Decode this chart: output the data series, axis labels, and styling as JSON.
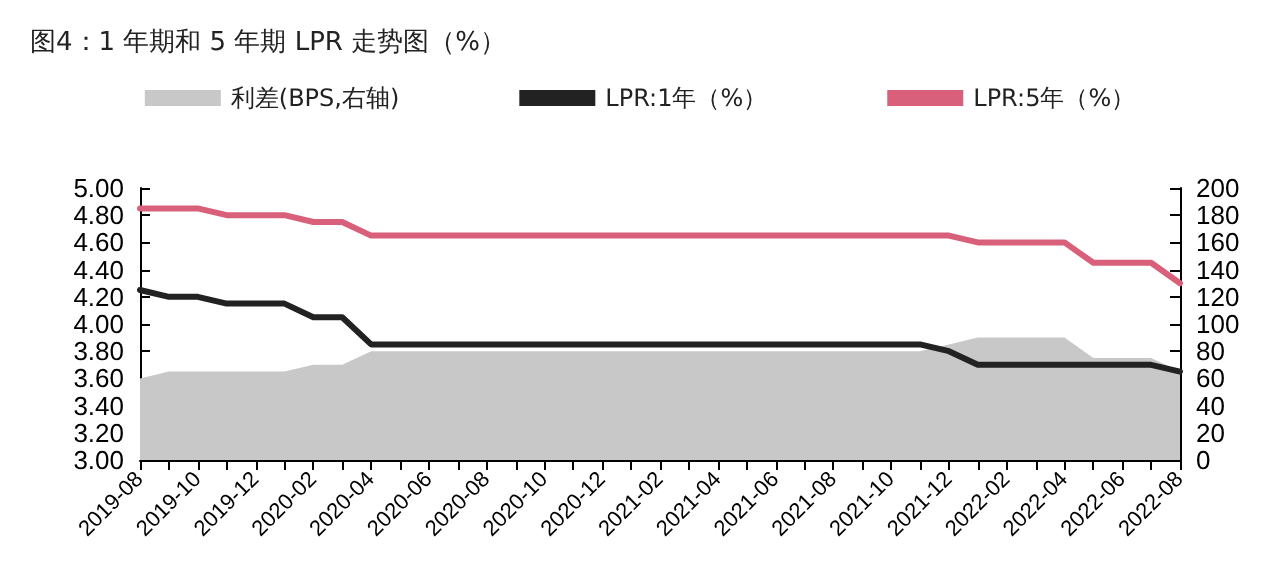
{
  "chart_data": {
    "type": "line",
    "title": "图4：1 年期和 5 年期 LPR 走势图（%）",
    "categories": [
      "2019-08",
      null,
      "2019-10",
      null,
      "2019-12",
      null,
      "2020-02",
      null,
      "2020-04",
      null,
      "2020-06",
      null,
      "2020-08",
      null,
      "2020-10",
      null,
      "2020-12",
      null,
      "2021-02",
      null,
      "2021-04",
      null,
      "2021-06",
      null,
      "2021-08",
      null,
      "2021-10",
      null,
      "2021-12",
      null,
      "2022-02",
      null,
      "2022-04",
      null,
      "2022-06",
      null,
      "2022-08"
    ],
    "series": [
      {
        "name": "利差(BPS,右轴)",
        "type": "area",
        "axis": "y2",
        "color": "#c8c8c8",
        "values": [
          60,
          65,
          65,
          65,
          65,
          65,
          70,
          70,
          80,
          80,
          80,
          80,
          80,
          80,
          80,
          80,
          80,
          80,
          80,
          80,
          80,
          80,
          80,
          80,
          80,
          80,
          80,
          80,
          85,
          90,
          90,
          90,
          90,
          75,
          75,
          75,
          65
        ]
      },
      {
        "name": "LPR:1年（%）",
        "color": "#222222",
        "values": [
          4.25,
          4.2,
          4.2,
          4.15,
          4.15,
          4.15,
          4.05,
          4.05,
          3.85,
          3.85,
          3.85,
          3.85,
          3.85,
          3.85,
          3.85,
          3.85,
          3.85,
          3.85,
          3.85,
          3.85,
          3.85,
          3.85,
          3.85,
          3.85,
          3.85,
          3.85,
          3.85,
          3.85,
          3.8,
          3.7,
          3.7,
          3.7,
          3.7,
          3.7,
          3.7,
          3.7,
          3.65
        ]
      },
      {
        "name": "LPR:5年（%）",
        "color": "#d9607a",
        "values": [
          4.85,
          4.85,
          4.85,
          4.8,
          4.8,
          4.8,
          4.75,
          4.75,
          4.65,
          4.65,
          4.65,
          4.65,
          4.65,
          4.65,
          4.65,
          4.65,
          4.65,
          4.65,
          4.65,
          4.65,
          4.65,
          4.65,
          4.65,
          4.65,
          4.65,
          4.65,
          4.65,
          4.65,
          4.65,
          4.6,
          4.6,
          4.6,
          4.6,
          4.45,
          4.45,
          4.45,
          4.3
        ]
      }
    ],
    "ylim": [
      3.0,
      5.0
    ],
    "yticks": [
      {
        "value": 3.0,
        "label": "3.00"
      },
      {
        "value": 3.2,
        "label": "3.20"
      },
      {
        "value": 3.4,
        "label": "3.40"
      },
      {
        "value": 3.6,
        "label": "3.60"
      },
      {
        "value": 3.8,
        "label": "3.80"
      },
      {
        "value": 4.0,
        "label": "4.00"
      },
      {
        "value": 4.2,
        "label": "4.20"
      },
      {
        "value": 4.4,
        "label": "4.40"
      },
      {
        "value": 4.6,
        "label": "4.60"
      },
      {
        "value": 4.8,
        "label": "4.80"
      },
      {
        "value": 5.0,
        "label": "5.00"
      }
    ],
    "y2lim": [
      0,
      200
    ],
    "y2ticks": [
      0,
      20,
      40,
      60,
      80,
      100,
      120,
      140,
      160,
      180,
      200
    ],
    "legend": "top",
    "grid": false,
    "marker": "none",
    "line_style": "solid"
  }
}
